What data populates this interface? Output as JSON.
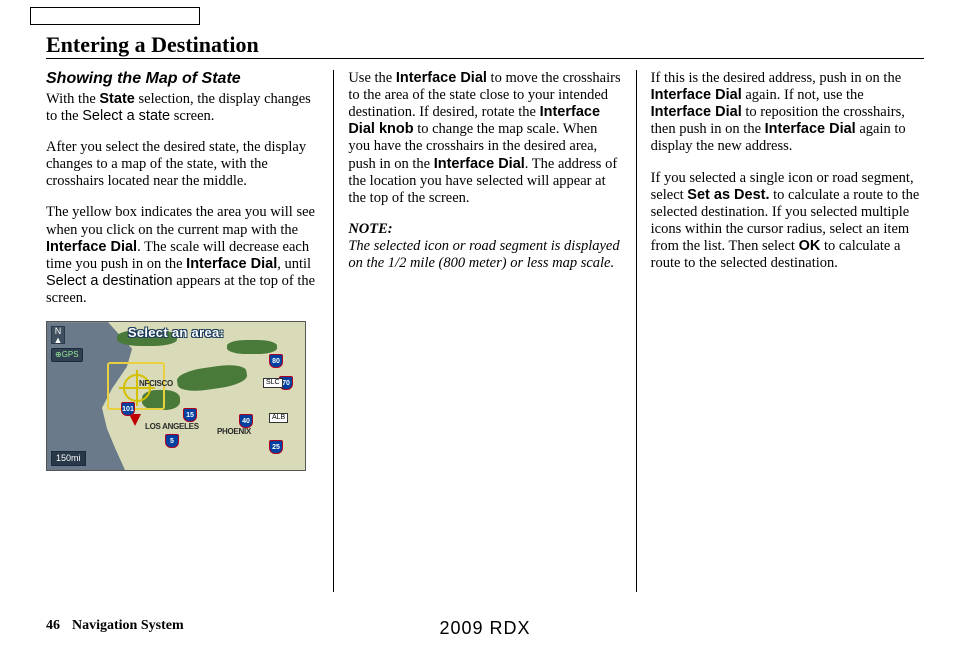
{
  "page": {
    "title": "Entering a Destination",
    "number": "46",
    "footer_section": "Navigation System",
    "footer_model": "2009  RDX"
  },
  "col1": {
    "subheading": "Showing the Map of State",
    "p1_a": "With the ",
    "p1_b": "State",
    "p1_c": " selection, the display changes to the ",
    "p1_d": "Select a state",
    "p1_e": " screen.",
    "p2": "After you select the desired state, the display changes to a map of the state, with the crosshairs located near the middle.",
    "p3_a": "The yellow box indicates the area you will see when you click on the current map with the ",
    "p3_b": "Interface Dial",
    "p3_c": ". The scale will decrease each time you push in on the ",
    "p3_d": "Interface Dial",
    "p3_e": ", until ",
    "p3_f": "Select a destination",
    "p3_g": " appears at the top of the screen."
  },
  "map": {
    "title": "Select an area:",
    "compass_n": "N",
    "compass_arrow": "▲",
    "gps": "⊕GPS",
    "scale": "150mi",
    "city_sf": "NFCISCO",
    "city_la": "LOS ANGELES",
    "city_phx": "PHOENIX",
    "i80": "80",
    "i70": "70",
    "i15": "15",
    "i5": "5",
    "i25": "25",
    "i40": "40",
    "i101": "101",
    "slc": "SLC",
    "alb": "ALB"
  },
  "col2": {
    "p1_a": "Use the ",
    "p1_b": "Interface Dial",
    "p1_c": " to move the crosshairs to the area of the state close to your intended destination. If desired, rotate the ",
    "p1_d": "Interface Dial knob",
    "p1_e": " to change the map scale. When you have the crosshairs in the desired area, push in on the ",
    "p1_f": "Interface Dial",
    "p1_g": ". The address of the location you have selected will appear at the top of the screen.",
    "note_label": "NOTE:",
    "note_body": "The selected icon or road segment is displayed on the 1/2 mile (800 meter) or less map scale."
  },
  "col3": {
    "p1_a": "If this is the desired address, push in on the ",
    "p1_b": "Interface Dial",
    "p1_c": " again. If not, use the ",
    "p1_d": "Interface Dial",
    "p1_e": " to reposition the crosshairs, then push in on the ",
    "p1_f": "Interface Dial",
    "p1_g": " again to display the new address.",
    "p2_a": "If you selected a single icon or road segment, select ",
    "p2_b": "Set as Dest.",
    "p2_c": " to calculate a route to the selected destination. If you selected multiple icons within the cursor radius, select an item from the list. Then select ",
    "p2_d": "OK",
    "p2_e": " to calculate a route to the selected destination."
  }
}
